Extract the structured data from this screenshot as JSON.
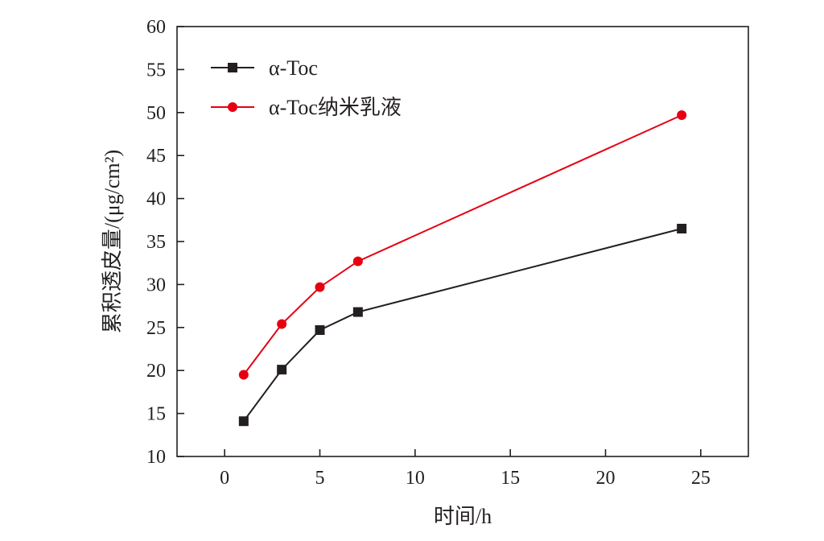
{
  "chart_data": {
    "type": "line",
    "title": "",
    "xlabel": "时间/h",
    "ylabel": "累积透皮量/(μg/cm²)",
    "xlim": [
      -2.5,
      27.5
    ],
    "ylim": [
      10,
      60
    ],
    "xticks": [
      0,
      5,
      10,
      15,
      20,
      25
    ],
    "yticks": [
      10,
      15,
      20,
      25,
      30,
      35,
      40,
      45,
      50,
      55,
      60
    ],
    "grid": false,
    "legend_position": "top-left",
    "x": [
      1,
      3,
      5,
      7,
      24
    ],
    "series": [
      {
        "name": "α-Toc",
        "color": "#231f20",
        "marker": "square",
        "values": [
          14.1,
          20.1,
          24.7,
          26.8,
          36.5
        ]
      },
      {
        "name": "α-Toc纳米乳液",
        "color": "#e60012",
        "marker": "circle",
        "values": [
          19.5,
          25.4,
          29.7,
          32.7,
          49.7
        ]
      }
    ]
  }
}
